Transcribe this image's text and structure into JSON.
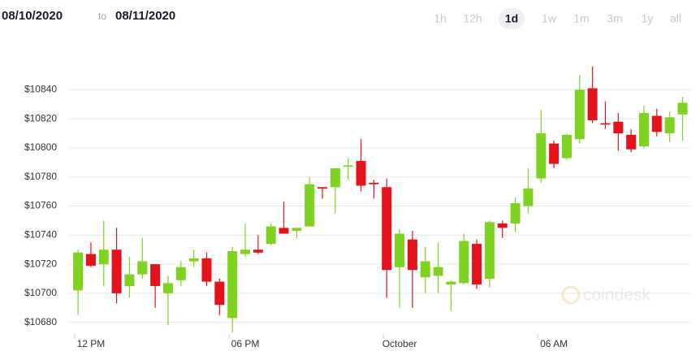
{
  "header": {
    "from": "08/10/2020",
    "sep": "to",
    "to": "08/11/2020",
    "ranges": [
      "1h",
      "12h",
      "1d",
      "1w",
      "1m",
      "3m",
      "1y",
      "all"
    ],
    "selected": "1d"
  },
  "watermark": "coindesk",
  "chart_data": {
    "type": "candlestick",
    "x": [
      11.5,
      12,
      12.5,
      13,
      13.5,
      14,
      14.5,
      15,
      15.5,
      16,
      16.5,
      17,
      17.5,
      18,
      18.5,
      19,
      19.5,
      20,
      20.5,
      21,
      21.5,
      22,
      22.5,
      23,
      23.5,
      24,
      24.5,
      25,
      25.5,
      26,
      26.5,
      27,
      27.5,
      28,
      28.5,
      29,
      29.5,
      30,
      30.5,
      31,
      31.5,
      32,
      32.5,
      33,
      33.5,
      34,
      34.5,
      35
    ],
    "open": [
      10702,
      10727,
      10720,
      10730,
      10705,
      10713,
      10720,
      10700,
      10709,
      10722,
      10724,
      10708,
      10683,
      10727,
      10730,
      10734,
      10745,
      10743,
      10746,
      10773,
      10773,
      10787,
      10791,
      10776,
      10773,
      10718,
      10737,
      10711,
      10712,
      10706,
      10707,
      10734,
      10710,
      10748,
      10748,
      10760,
      10779,
      10803,
      10793,
      10806,
      10841,
      10817,
      10818,
      10809,
      10801,
      10822,
      10810,
      10823
    ],
    "high": [
      10730,
      10735,
      10750,
      10745,
      10725,
      10738,
      10720,
      10712,
      10722,
      10730,
      10728,
      10710,
      10732,
      10748,
      10740,
      10748,
      10763,
      10745,
      10780,
      10773,
      10786,
      10793,
      10806,
      10778,
      10779,
      10744,
      10743,
      10732,
      10735,
      10709,
      10741,
      10737,
      10750,
      10750,
      10766,
      10786,
      10826,
      10805,
      10810,
      10850,
      10856,
      10832,
      10824,
      10813,
      10829,
      10827,
      10825,
      10835
    ],
    "low": [
      10685,
      10718,
      10705,
      10693,
      10697,
      10710,
      10690,
      10678,
      10705,
      10718,
      10705,
      10685,
      10673,
      10725,
      10727,
      10733,
      10741,
      10738,
      10746,
      10765,
      10755,
      10778,
      10770,
      10765,
      10697,
      10690,
      10690,
      10700,
      10700,
      10688,
      10706,
      10703,
      10704,
      10738,
      10742,
      10755,
      10776,
      10786,
      10792,
      10803,
      10817,
      10813,
      10798,
      10797,
      10800,
      10808,
      10804,
      10805
    ],
    "close": [
      10728,
      10719,
      10730,
      10700,
      10713,
      10722,
      10705,
      10707,
      10718,
      10724,
      10708,
      10692,
      10729,
      10730,
      10728,
      10746,
      10741,
      10745,
      10775,
      10772,
      10786,
      10788,
      10774,
      10775,
      10716,
      10741,
      10716,
      10722,
      10718,
      10708,
      10736,
      10706,
      10749,
      10745,
      10762,
      10772,
      10810,
      10789,
      10809,
      10840,
      10819,
      10816,
      10810,
      10799,
      10824,
      10811,
      10821,
      10831
    ],
    "up_color": "#7ed321",
    "down_color": "#e5121b",
    "grid": true,
    "xlim": [
      11.15,
      35.3
    ],
    "xticks": [
      {
        "value": 12,
        "label": "12 PM"
      },
      {
        "value": 18,
        "label": "06 PM"
      },
      {
        "value": 24,
        "label": "October"
      },
      {
        "value": 30,
        "label": "06 AM"
      }
    ],
    "ylim": [
      10672,
      10857
    ],
    "yticks": [
      {
        "value": 10680,
        "label": "$10680"
      },
      {
        "value": 10700,
        "label": "$10700"
      },
      {
        "value": 10720,
        "label": "$10720"
      },
      {
        "value": 10740,
        "label": "$10740"
      },
      {
        "value": 10760,
        "label": "$10760"
      },
      {
        "value": 10780,
        "label": "$10780"
      },
      {
        "value": 10800,
        "label": "$10800"
      },
      {
        "value": 10820,
        "label": "$10820"
      },
      {
        "value": 10840,
        "label": "$10840"
      }
    ]
  }
}
